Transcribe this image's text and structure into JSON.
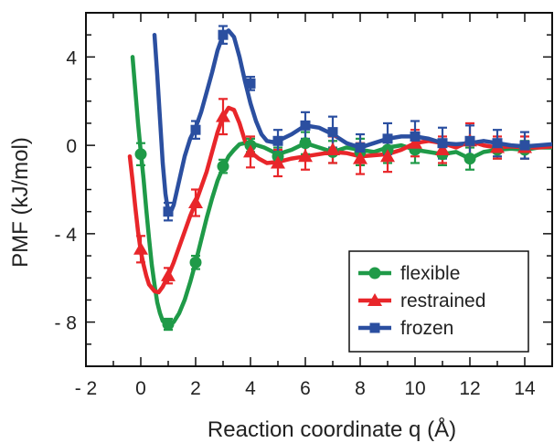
{
  "chart_data": {
    "type": "line",
    "title": "",
    "xlabel": "Reaction coordinate q (Å)",
    "ylabel": "PMF (kJ/mol)",
    "xlim": [
      -2,
      15
    ],
    "ylim": [
      -10,
      6
    ],
    "x_ticks": [
      -2,
      0,
      2,
      4,
      6,
      8,
      10,
      12,
      14
    ],
    "x_tick_labels": [
      "- 2",
      "0",
      "2",
      "4",
      "6",
      "8",
      "10",
      "12",
      "14"
    ],
    "y_ticks": [
      -8,
      -4,
      0,
      4
    ],
    "y_tick_labels": [
      "- 8",
      "- 4",
      "0",
      "4"
    ],
    "legend_position": "bottom-right",
    "grid": false,
    "series": [
      {
        "name": "flexible",
        "color": "#1f9a48",
        "marker": "circle",
        "curve": [
          [
            -0.3,
            4.0
          ],
          [
            -0.2,
            2.5
          ],
          [
            -0.1,
            1.0
          ],
          [
            0,
            -0.3
          ],
          [
            0.1,
            -1.5
          ],
          [
            0.2,
            -2.9
          ],
          [
            0.3,
            -4.2
          ],
          [
            0.4,
            -5.4
          ],
          [
            0.5,
            -6.3
          ],
          [
            0.6,
            -7.1
          ],
          [
            0.7,
            -7.6
          ],
          [
            0.8,
            -7.95
          ],
          [
            1.0,
            -8.1
          ],
          [
            1.2,
            -8.0
          ],
          [
            1.4,
            -7.6
          ],
          [
            1.6,
            -7.0
          ],
          [
            1.8,
            -6.2
          ],
          [
            2.0,
            -5.3
          ],
          [
            2.2,
            -4.3
          ],
          [
            2.4,
            -3.3
          ],
          [
            2.6,
            -2.4
          ],
          [
            2.8,
            -1.6
          ],
          [
            3.0,
            -1.0
          ],
          [
            3.2,
            -0.5
          ],
          [
            3.4,
            -0.2
          ],
          [
            3.6,
            0.05
          ],
          [
            3.8,
            0.1
          ],
          [
            4.0,
            0.1
          ],
          [
            4.5,
            -0.1
          ],
          [
            5.0,
            -0.4
          ],
          [
            5.5,
            -0.2
          ],
          [
            6.0,
            0.1
          ],
          [
            6.5,
            -0.1
          ],
          [
            7.0,
            -0.3
          ],
          [
            7.5,
            -0.1
          ],
          [
            8.0,
            -0.2
          ],
          [
            8.5,
            -0.3
          ],
          [
            9.0,
            -0.1
          ],
          [
            9.5,
            0.0
          ],
          [
            10.0,
            -0.2
          ],
          [
            10.5,
            -0.3
          ],
          [
            11.0,
            -0.4
          ],
          [
            11.5,
            -0.3
          ],
          [
            12.0,
            -0.6
          ],
          [
            12.5,
            -0.3
          ],
          [
            13.0,
            -0.2
          ],
          [
            13.5,
            -0.15
          ],
          [
            14.0,
            -0.2
          ],
          [
            14.5,
            -0.1
          ],
          [
            15.0,
            -0.1
          ]
        ],
        "points": [
          [
            0,
            -0.4,
            0.5
          ],
          [
            1,
            -8.1,
            0.25
          ],
          [
            2,
            -5.3,
            0.3
          ],
          [
            3,
            -0.95,
            0.3
          ],
          [
            4,
            0.0,
            0.3
          ],
          [
            5,
            -0.5,
            0.4
          ],
          [
            6,
            0.1,
            0.5
          ],
          [
            7,
            -0.3,
            0.5
          ],
          [
            8,
            -0.3,
            0.6
          ],
          [
            9,
            -0.2,
            0.6
          ],
          [
            10,
            -0.2,
            0.6
          ],
          [
            11,
            -0.4,
            0.5
          ],
          [
            12,
            -0.6,
            0.5
          ],
          [
            13,
            -0.2,
            0.4
          ],
          [
            14,
            -0.2,
            0.4
          ]
        ]
      },
      {
        "name": "restrained",
        "color": "#e8262a",
        "marker": "triangle",
        "curve": [
          [
            -0.4,
            -0.5
          ],
          [
            -0.3,
            -1.6
          ],
          [
            -0.2,
            -2.8
          ],
          [
            -0.1,
            -3.9
          ],
          [
            0,
            -4.8
          ],
          [
            0.1,
            -5.4
          ],
          [
            0.2,
            -5.9
          ],
          [
            0.3,
            -6.3
          ],
          [
            0.5,
            -6.6
          ],
          [
            0.65,
            -6.65
          ],
          [
            0.8,
            -6.4
          ],
          [
            1.0,
            -5.9
          ],
          [
            1.2,
            -5.3
          ],
          [
            1.4,
            -4.6
          ],
          [
            1.6,
            -3.9
          ],
          [
            1.8,
            -3.2
          ],
          [
            2.0,
            -2.6
          ],
          [
            2.2,
            -1.9
          ],
          [
            2.4,
            -1.2
          ],
          [
            2.6,
            -0.3
          ],
          [
            2.8,
            0.6
          ],
          [
            3.0,
            1.3
          ],
          [
            3.2,
            1.7
          ],
          [
            3.4,
            1.6
          ],
          [
            3.6,
            1.0
          ],
          [
            3.8,
            0.2
          ],
          [
            4.0,
            -0.3
          ],
          [
            4.3,
            -0.6
          ],
          [
            4.6,
            -0.8
          ],
          [
            5.0,
            -0.75
          ],
          [
            5.5,
            -0.6
          ],
          [
            6.0,
            -0.5
          ],
          [
            6.5,
            -0.4
          ],
          [
            7.0,
            -0.3
          ],
          [
            7.5,
            -0.35
          ],
          [
            8.0,
            -0.5
          ],
          [
            8.5,
            -0.45
          ],
          [
            9.0,
            -0.4
          ],
          [
            9.5,
            -0.2
          ],
          [
            10.0,
            0.1
          ],
          [
            10.5,
            0.2
          ],
          [
            11.0,
            0.1
          ],
          [
            11.5,
            -0.1
          ],
          [
            12.0,
            0.2
          ],
          [
            12.5,
            0.0
          ],
          [
            13.0,
            -0.1
          ],
          [
            13.5,
            -0.05
          ],
          [
            14.0,
            -0.1
          ],
          [
            14.5,
            -0.1
          ],
          [
            15.0,
            -0.05
          ]
        ],
        "points": [
          [
            0,
            -4.7,
            0.6
          ],
          [
            1,
            -5.9,
            0.35
          ],
          [
            2,
            -2.6,
            0.6
          ],
          [
            3,
            1.3,
            0.8
          ],
          [
            4,
            -0.3,
            0.7
          ],
          [
            5,
            -0.8,
            0.6
          ],
          [
            6,
            -0.5,
            0.6
          ],
          [
            7,
            -0.2,
            0.6
          ],
          [
            8,
            -0.6,
            0.7
          ],
          [
            9,
            -0.5,
            0.7
          ],
          [
            10,
            0.1,
            0.6
          ],
          [
            11,
            -0.2,
            0.6
          ],
          [
            12,
            0.2,
            0.8
          ],
          [
            13,
            -0.1,
            0.5
          ],
          [
            14,
            -0.1,
            0.5
          ]
        ]
      },
      {
        "name": "frozen",
        "color": "#2b4fa0",
        "marker": "square",
        "curve": [
          [
            0.5,
            5.0
          ],
          [
            0.6,
            3.2
          ],
          [
            0.7,
            1.2
          ],
          [
            0.8,
            -0.8
          ],
          [
            0.9,
            -2.2
          ],
          [
            1.0,
            -3.0
          ],
          [
            1.1,
            -3.0
          ],
          [
            1.2,
            -2.7
          ],
          [
            1.4,
            -1.6
          ],
          [
            1.6,
            -0.5
          ],
          [
            1.8,
            0.3
          ],
          [
            2.0,
            0.8
          ],
          [
            2.2,
            1.5
          ],
          [
            2.4,
            2.4
          ],
          [
            2.6,
            3.3
          ],
          [
            2.8,
            4.3
          ],
          [
            3.0,
            5.0
          ],
          [
            3.2,
            5.2
          ],
          [
            3.4,
            4.9
          ],
          [
            3.6,
            4.0
          ],
          [
            3.8,
            2.9
          ],
          [
            4.0,
            1.9
          ],
          [
            4.2,
            1.1
          ],
          [
            4.4,
            0.5
          ],
          [
            4.6,
            0.2
          ],
          [
            4.8,
            0.15
          ],
          [
            5.0,
            0.2
          ],
          [
            5.5,
            0.5
          ],
          [
            6.0,
            0.9
          ],
          [
            6.5,
            0.8
          ],
          [
            7.0,
            0.5
          ],
          [
            7.5,
            0.1
          ],
          [
            8.0,
            -0.1
          ],
          [
            8.5,
            0.1
          ],
          [
            9.0,
            0.3
          ],
          [
            9.5,
            0.4
          ],
          [
            10.0,
            0.4
          ],
          [
            10.5,
            0.3
          ],
          [
            11.0,
            0.1
          ],
          [
            11.5,
            0.05
          ],
          [
            12.0,
            0.1
          ],
          [
            12.5,
            0.2
          ],
          [
            13.0,
            0.1
          ],
          [
            13.5,
            0.0
          ],
          [
            14.0,
            -0.05
          ],
          [
            14.5,
            0.0
          ],
          [
            15.0,
            0.05
          ]
        ],
        "points": [
          [
            1,
            -3.0,
            0.4
          ],
          [
            2,
            0.7,
            0.4
          ],
          [
            3,
            5.0,
            0.4
          ],
          [
            4,
            2.8,
            0.3
          ],
          [
            5,
            0.2,
            0.5
          ],
          [
            6,
            0.9,
            0.6
          ],
          [
            7,
            0.6,
            0.7
          ],
          [
            8,
            -0.1,
            0.6
          ],
          [
            9,
            0.3,
            0.7
          ],
          [
            10,
            0.4,
            0.7
          ],
          [
            11,
            0.1,
            0.7
          ],
          [
            12,
            0.2,
            0.7
          ],
          [
            13,
            0.1,
            0.6
          ],
          [
            14,
            0.0,
            0.6
          ]
        ]
      }
    ]
  }
}
